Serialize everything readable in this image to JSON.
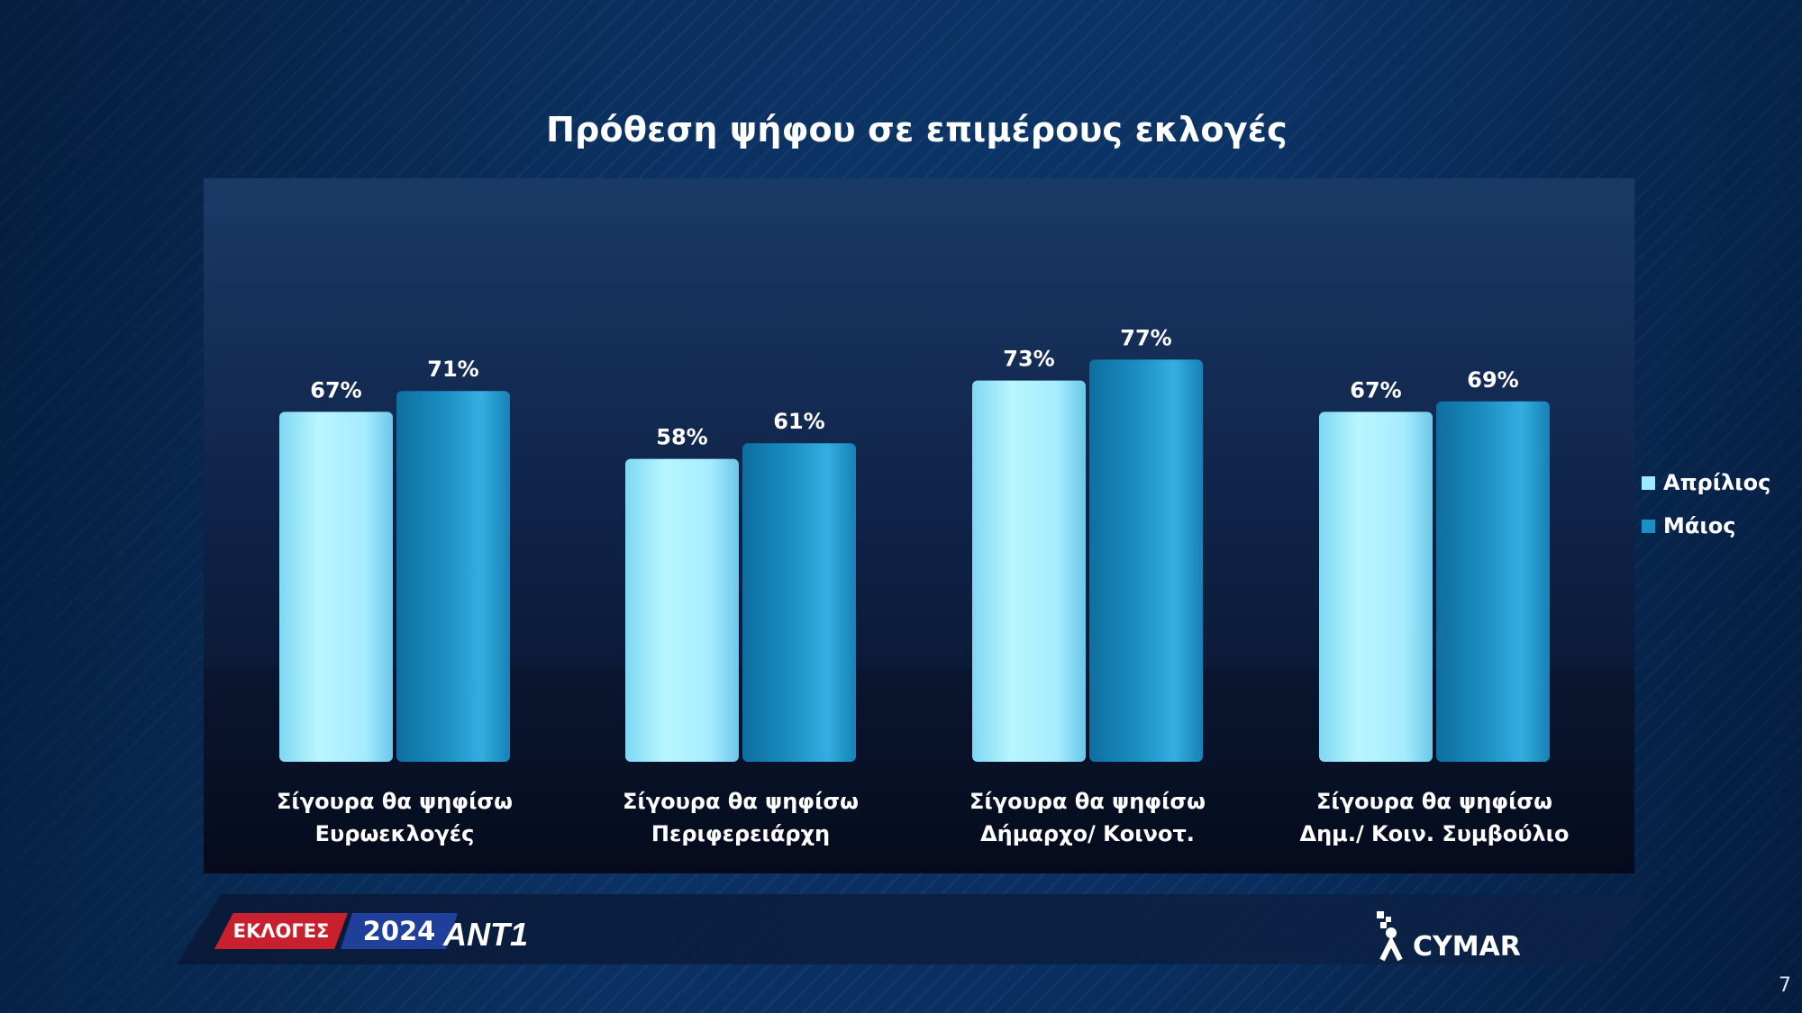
{
  "title": "Πρόθεση ψήφου σε επιμέρους εκλογές",
  "chart_data": {
    "type": "bar",
    "categories": [
      [
        "Σίγουρα θα ψηφίσω",
        "Ευρωεκλογές"
      ],
      [
        "Σίγουρα θα ψηφίσω",
        "Περιφερειάρχη"
      ],
      [
        "Σίγουρα θα ψηφίσω",
        "Δήμαρχο/ Κοινοτ."
      ],
      [
        "Σίγουρα θα ψηφίσω",
        "Δημ./ Κοιν. Συμβούλιο"
      ]
    ],
    "series": [
      {
        "name": "Απρίλιος",
        "values": [
          67,
          58,
          73,
          67
        ],
        "labels": [
          "67%",
          "58%",
          "73%",
          "67%"
        ],
        "color": "#9feaff"
      },
      {
        "name": "Μάιος",
        "values": [
          71,
          61,
          77,
          69
        ],
        "labels": [
          "71%",
          "61%",
          "77%",
          "69%"
        ],
        "color": "#1b8fc4"
      }
    ],
    "ylim": [
      0,
      100
    ],
    "grid": false,
    "legend": "right"
  },
  "footer": {
    "badge_eklog": "ΕΚΛΟΓΕΣ",
    "badge_year": "2024",
    "brand_ant": "ANT1",
    "brand_cymar": "CYMAR"
  },
  "page_number": "7",
  "colors": {
    "april": "#9feaff",
    "may": "#1b8fc4"
  }
}
